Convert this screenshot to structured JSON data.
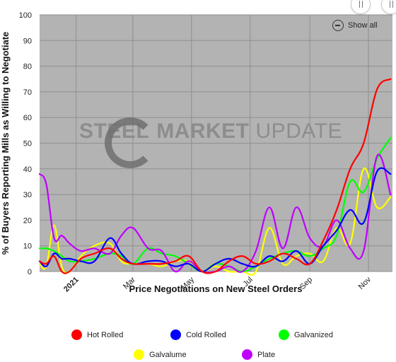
{
  "chart_data": {
    "type": "line",
    "title": "",
    "xlabel": "Price Negotiations on New Steel Orders",
    "ylabel": "% of Buyers Reporting Mills as Willing to Negotiate",
    "ylim": [
      0,
      100
    ],
    "yticks": [
      0,
      10,
      20,
      30,
      40,
      50,
      60,
      70,
      80,
      90,
      100
    ],
    "x_range": [
      "2020-11-24",
      "2021-11-26"
    ],
    "xticks": [
      {
        "date": "2021-01-01",
        "label": "2021",
        "bold": true
      },
      {
        "date": "2021-03-01",
        "label": "Mar",
        "bold": false
      },
      {
        "date": "2021-05-01",
        "label": "May",
        "bold": false
      },
      {
        "date": "2021-07-01",
        "label": "Jul",
        "bold": false
      },
      {
        "date": "2021-09-01",
        "label": "Sep",
        "bold": false
      },
      {
        "date": "2021-11-01",
        "label": "Nov",
        "bold": false
      }
    ],
    "grid": true,
    "legend_position": "bottom",
    "background_color": "#b3b3b3",
    "series": [
      {
        "name": "Hot Rolled",
        "color": "#ff0000",
        "points": [
          [
            "2020-11-24",
            4
          ],
          [
            "2020-12-01",
            3
          ],
          [
            "2020-12-09",
            6
          ],
          [
            "2020-12-17",
            0
          ],
          [
            "2020-12-25",
            0
          ],
          [
            "2021-01-06",
            5
          ],
          [
            "2021-01-20",
            7
          ],
          [
            "2021-02-05",
            9
          ],
          [
            "2021-02-17",
            5
          ],
          [
            "2021-03-01",
            3
          ],
          [
            "2021-03-17",
            3
          ],
          [
            "2021-03-31",
            3
          ],
          [
            "2021-04-14",
            4
          ],
          [
            "2021-04-28",
            6
          ],
          [
            "2021-05-12",
            0
          ],
          [
            "2021-05-26",
            0
          ],
          [
            "2021-06-09",
            4
          ],
          [
            "2021-06-23",
            6
          ],
          [
            "2021-07-07",
            3
          ],
          [
            "2021-07-21",
            4
          ],
          [
            "2021-08-04",
            7
          ],
          [
            "2021-08-18",
            5
          ],
          [
            "2021-09-01",
            3
          ],
          [
            "2021-09-15",
            12
          ],
          [
            "2021-09-29",
            24
          ],
          [
            "2021-10-13",
            40
          ],
          [
            "2021-10-27",
            50
          ],
          [
            "2021-11-10",
            71
          ],
          [
            "2021-11-24",
            75
          ]
        ]
      },
      {
        "name": "Cold Rolled",
        "color": "#0000ff",
        "points": [
          [
            "2020-11-24",
            4
          ],
          [
            "2020-12-01",
            2
          ],
          [
            "2020-12-09",
            7
          ],
          [
            "2020-12-17",
            5
          ],
          [
            "2020-12-25",
            5
          ],
          [
            "2021-01-06",
            4
          ],
          [
            "2021-01-20",
            4
          ],
          [
            "2021-02-05",
            13
          ],
          [
            "2021-02-17",
            7
          ],
          [
            "2021-03-01",
            3
          ],
          [
            "2021-03-17",
            4
          ],
          [
            "2021-03-31",
            4
          ],
          [
            "2021-04-14",
            2
          ],
          [
            "2021-04-28",
            3
          ],
          [
            "2021-05-12",
            0
          ],
          [
            "2021-05-26",
            3
          ],
          [
            "2021-06-09",
            5
          ],
          [
            "2021-06-23",
            3
          ],
          [
            "2021-07-07",
            2
          ],
          [
            "2021-07-21",
            6
          ],
          [
            "2021-08-04",
            4
          ],
          [
            "2021-08-18",
            8
          ],
          [
            "2021-09-01",
            3
          ],
          [
            "2021-09-15",
            10
          ],
          [
            "2021-09-29",
            16
          ],
          [
            "2021-10-13",
            24
          ],
          [
            "2021-10-27",
            19
          ],
          [
            "2021-11-10",
            39
          ],
          [
            "2021-11-24",
            38
          ]
        ]
      },
      {
        "name": "Galvanized",
        "color": "#00ff00",
        "points": [
          [
            "2020-11-24",
            9
          ],
          [
            "2020-12-01",
            9
          ],
          [
            "2020-12-09",
            8
          ],
          [
            "2020-12-17",
            6
          ],
          [
            "2020-12-25",
            4
          ],
          [
            "2021-01-06",
            4
          ],
          [
            "2021-01-20",
            5
          ],
          [
            "2021-02-05",
            7
          ],
          [
            "2021-02-17",
            6
          ],
          [
            "2021-03-01",
            3
          ],
          [
            "2021-03-17",
            9
          ],
          [
            "2021-03-31",
            7
          ],
          [
            "2021-04-14",
            6
          ],
          [
            "2021-04-28",
            3
          ],
          [
            "2021-05-12",
            0
          ],
          [
            "2021-05-26",
            3
          ],
          [
            "2021-06-09",
            2
          ],
          [
            "2021-06-23",
            0
          ],
          [
            "2021-07-07",
            2
          ],
          [
            "2021-07-21",
            5
          ],
          [
            "2021-08-04",
            7
          ],
          [
            "2021-08-18",
            8
          ],
          [
            "2021-09-01",
            6
          ],
          [
            "2021-09-15",
            9
          ],
          [
            "2021-09-29",
            14
          ],
          [
            "2021-10-13",
            35
          ],
          [
            "2021-10-27",
            31
          ],
          [
            "2021-11-10",
            44
          ],
          [
            "2021-11-24",
            52
          ]
        ]
      },
      {
        "name": "Galvalume",
        "color": "#ffff00",
        "points": [
          [
            "2020-11-24",
            3
          ],
          [
            "2020-12-01",
            2
          ],
          [
            "2020-12-09",
            18
          ],
          [
            "2020-12-17",
            2
          ],
          [
            "2020-12-25",
            0
          ],
          [
            "2021-01-06",
            6
          ],
          [
            "2021-01-20",
            10
          ],
          [
            "2021-02-05",
            11
          ],
          [
            "2021-02-17",
            4
          ],
          [
            "2021-03-01",
            3
          ],
          [
            "2021-03-17",
            3
          ],
          [
            "2021-03-31",
            2
          ],
          [
            "2021-04-14",
            4
          ],
          [
            "2021-04-28",
            4
          ],
          [
            "2021-05-12",
            0
          ],
          [
            "2021-05-26",
            2
          ],
          [
            "2021-06-09",
            0
          ],
          [
            "2021-06-23",
            0
          ],
          [
            "2021-07-07",
            0
          ],
          [
            "2021-07-21",
            17
          ],
          [
            "2021-08-04",
            3
          ],
          [
            "2021-08-18",
            6
          ],
          [
            "2021-09-01",
            7
          ],
          [
            "2021-09-15",
            4
          ],
          [
            "2021-09-29",
            17
          ],
          [
            "2021-10-13",
            11
          ],
          [
            "2021-10-27",
            40
          ],
          [
            "2021-11-10",
            25
          ],
          [
            "2021-11-24",
            29
          ]
        ]
      },
      {
        "name": "Plate",
        "color": "#bf00ff",
        "points": [
          [
            "2020-11-24",
            38
          ],
          [
            "2020-12-01",
            34
          ],
          [
            "2020-12-09",
            13
          ],
          [
            "2020-12-17",
            14
          ],
          [
            "2020-12-25",
            11
          ],
          [
            "2021-01-06",
            8
          ],
          [
            "2021-01-20",
            9
          ],
          [
            "2021-02-05",
            7
          ],
          [
            "2021-02-17",
            14
          ],
          [
            "2021-03-01",
            17
          ],
          [
            "2021-03-17",
            9
          ],
          [
            "2021-03-31",
            8
          ],
          [
            "2021-04-14",
            0
          ],
          [
            "2021-04-28",
            4
          ],
          [
            "2021-05-12",
            0
          ],
          [
            "2021-05-26",
            0
          ],
          [
            "2021-06-09",
            2
          ],
          [
            "2021-06-23",
            0
          ],
          [
            "2021-07-07",
            8
          ],
          [
            "2021-07-21",
            25
          ],
          [
            "2021-08-04",
            9
          ],
          [
            "2021-08-18",
            25
          ],
          [
            "2021-09-01",
            13
          ],
          [
            "2021-09-15",
            10
          ],
          [
            "2021-09-29",
            20
          ],
          [
            "2021-10-13",
            9
          ],
          [
            "2021-10-27",
            8
          ],
          [
            "2021-11-10",
            45
          ],
          [
            "2021-11-24",
            30
          ]
        ]
      }
    ]
  },
  "watermark": {
    "word1": "STEEL",
    "word2": "MARKET",
    "word3": "UPDATE"
  },
  "show_all_label": "Show all"
}
